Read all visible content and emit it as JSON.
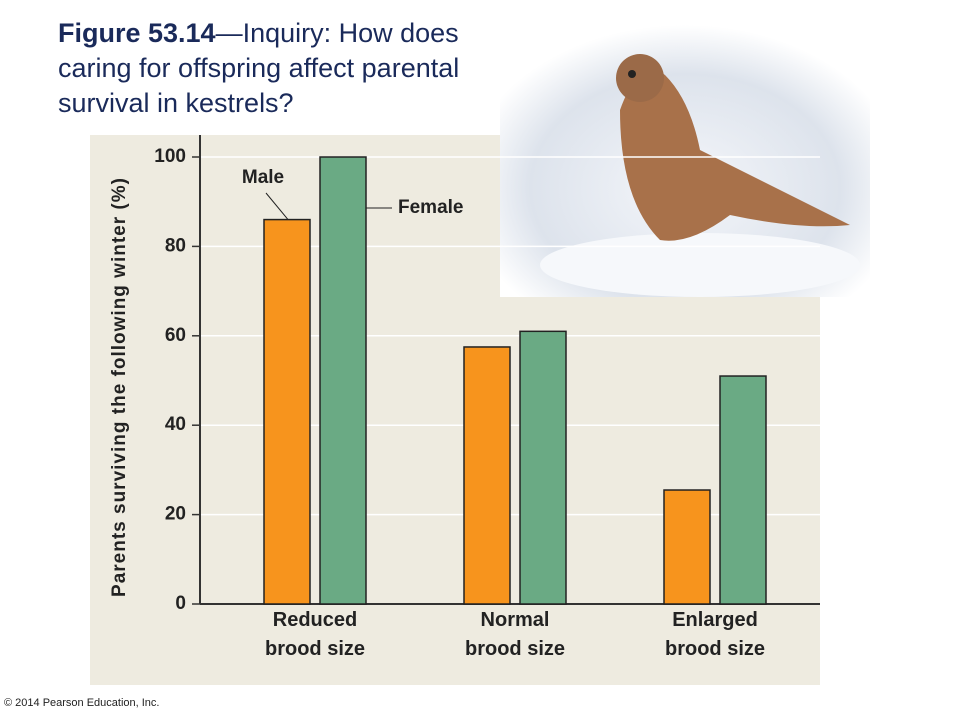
{
  "chart_data": {
    "type": "bar",
    "title_label": "Figure 53.14",
    "title": "—Inquiry: How does caring for offspring affect parental survival in kestrels?",
    "y_label": "Parents surviving the following winter (%)",
    "categories": [
      "Reduced brood size",
      "Normal brood size",
      "Enlarged brood size"
    ],
    "series": [
      {
        "name": "Male",
        "color": "#f7941d",
        "values": [
          86,
          57.5,
          25.5
        ]
      },
      {
        "name": "Female",
        "color": "#6aaa84",
        "values": [
          100,
          61,
          51
        ]
      }
    ],
    "ylim": [
      0,
      100
    ],
    "yticks": [
      0,
      20,
      40,
      60,
      80,
      100
    ],
    "grid": true,
    "credit": "© 2014 Pearson Education, Inc."
  }
}
